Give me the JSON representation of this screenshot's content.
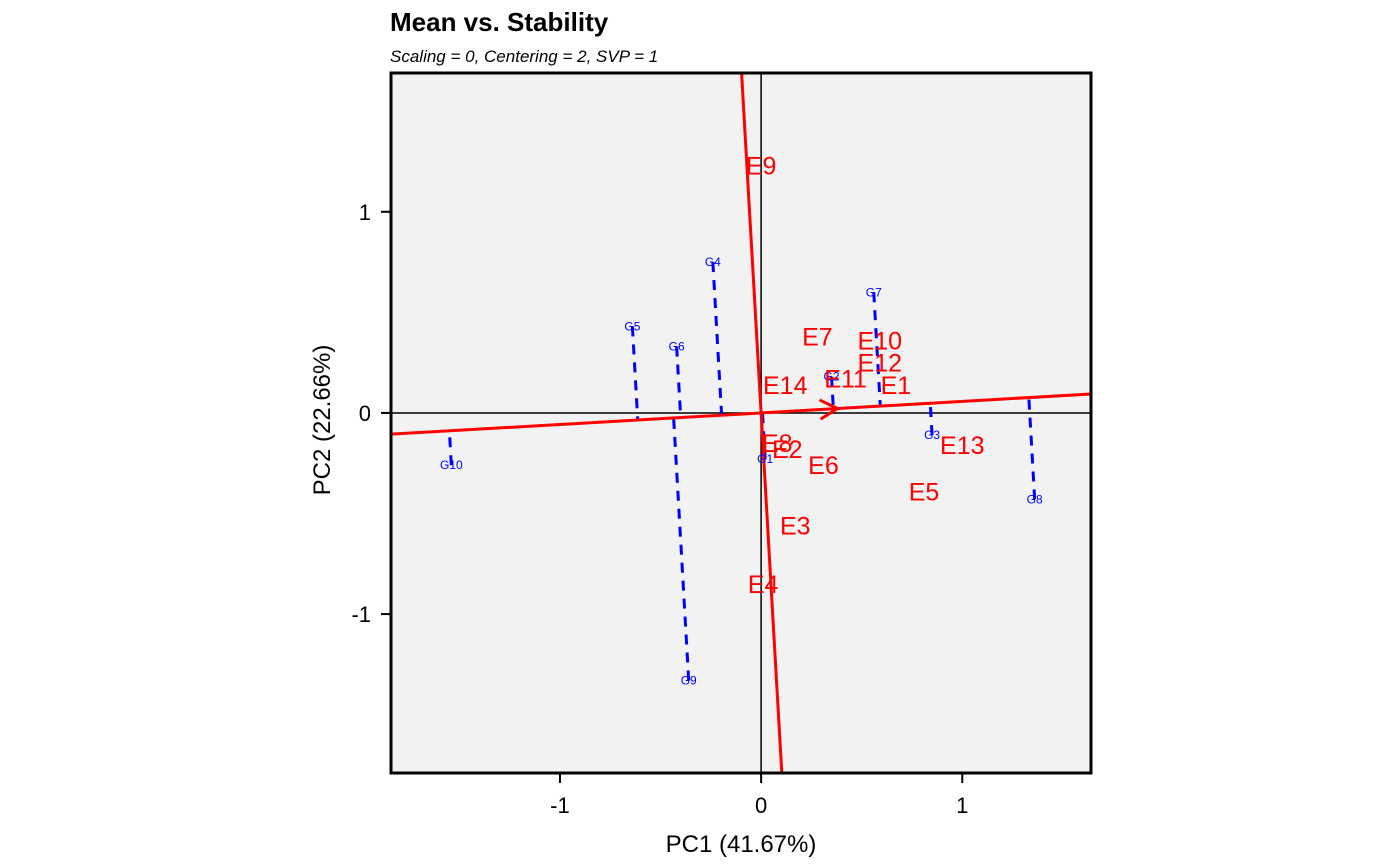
{
  "chart_data": {
    "type": "scatter",
    "title": "Mean vs. Stability",
    "subtitle": "Scaling = 0, Centering = 2, SVP = 1",
    "xlabel": "PC1 (41.67%)",
    "ylabel": "PC2 (22.66%)",
    "xlim": [
      -1.84,
      1.64
    ],
    "ylim": [
      -1.79,
      1.69
    ],
    "x_ticks": [
      -1,
      0,
      1
    ],
    "y_ticks": [
      -1,
      0,
      1
    ],
    "x_tick_labels": [
      "-1",
      "0",
      "1"
    ],
    "y_tick_labels": [
      "-1",
      "0",
      "1"
    ],
    "grid": false,
    "background_color": "#f2f2f2",
    "environment_color": "#ff0000",
    "genotype_color": "#0000ff",
    "aec_abscissa": {
      "slope": 0.0574,
      "arrow_at": [
        0.38,
        0.022
      ]
    },
    "aec_ordinate": {
      "slope": -17.4
    },
    "environments": [
      {
        "name": "E9",
        "x": 0.0,
        "y": 1.23
      },
      {
        "name": "E7",
        "x": 0.28,
        "y": 0.38
      },
      {
        "name": "E10",
        "x": 0.59,
        "y": 0.36
      },
      {
        "name": "E12",
        "x": 0.59,
        "y": 0.25
      },
      {
        "name": "E14",
        "x": 0.12,
        "y": 0.14
      },
      {
        "name": "E11",
        "x": 0.42,
        "y": 0.17
      },
      {
        "name": "E1",
        "x": 0.67,
        "y": 0.14
      },
      {
        "name": "E8",
        "x": 0.08,
        "y": -0.15
      },
      {
        "name": "E2",
        "x": 0.13,
        "y": -0.18
      },
      {
        "name": "E6",
        "x": 0.31,
        "y": -0.26
      },
      {
        "name": "E13",
        "x": 1.0,
        "y": -0.16
      },
      {
        "name": "E5",
        "x": 0.81,
        "y": -0.39
      },
      {
        "name": "E3",
        "x": 0.17,
        "y": -0.56
      },
      {
        "name": "E4",
        "x": 0.01,
        "y": -0.85
      }
    ],
    "genotypes": [
      {
        "name": "G1",
        "x": 0.02,
        "y": -0.23
      },
      {
        "name": "G2",
        "x": 0.35,
        "y": 0.18
      },
      {
        "name": "G3",
        "x": 0.85,
        "y": -0.11
      },
      {
        "name": "G4",
        "x": -0.24,
        "y": 0.75
      },
      {
        "name": "G5",
        "x": -0.64,
        "y": 0.43
      },
      {
        "name": "G6",
        "x": -0.42,
        "y": 0.33
      },
      {
        "name": "G7",
        "x": 0.56,
        "y": 0.6
      },
      {
        "name": "G8",
        "x": 1.36,
        "y": -0.43
      },
      {
        "name": "G9",
        "x": -0.36,
        "y": -1.33
      },
      {
        "name": "G10",
        "x": -1.54,
        "y": -0.26
      }
    ]
  }
}
